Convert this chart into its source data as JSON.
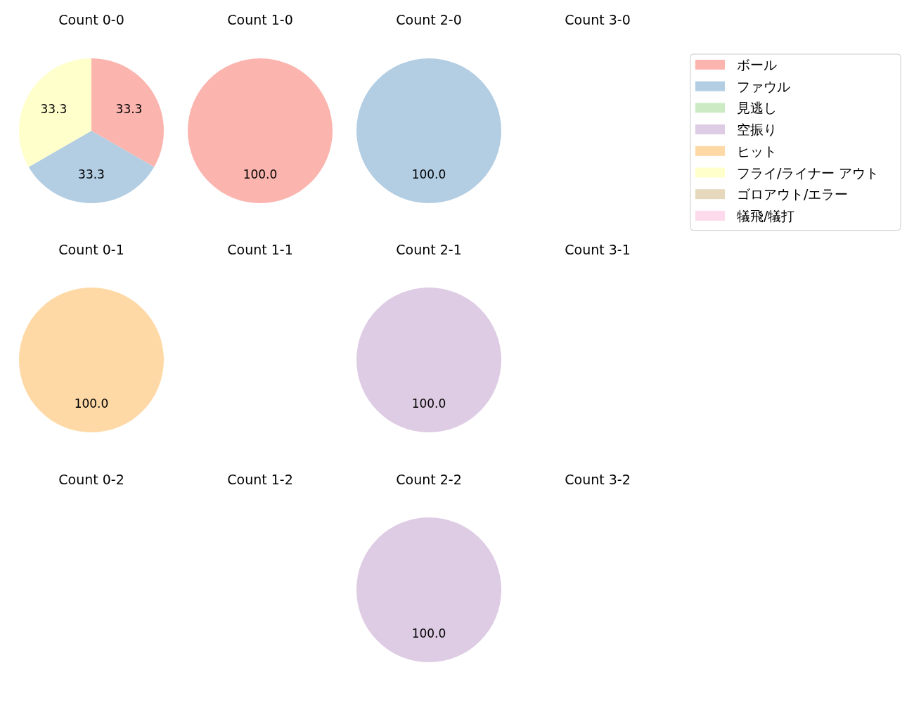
{
  "chart_data": [
    {
      "type": "pie",
      "title": "Count 0-0",
      "legend": "right",
      "categories": [
        "ボール",
        "ファウル",
        "見逃し",
        "空振り",
        "ヒット",
        "フライ/ライナー アウト",
        "ゴロアウト/エラー",
        "犠飛/犠打"
      ],
      "colors": [
        "#fbb4ae",
        "#b3cde3",
        "#ccebc5",
        "#decbe4",
        "#fed9a6",
        "#ffffcc",
        "#e5d8bd",
        "#fddaec"
      ],
      "values": [
        33.3,
        33.3,
        0,
        0,
        0,
        33.3,
        0,
        0
      ],
      "value_labels": [
        "33.3",
        "33.3",
        null,
        null,
        null,
        "33.3",
        null,
        null
      ]
    },
    {
      "type": "pie",
      "title": "Count 1-0",
      "colors": [
        "#fbb4ae"
      ],
      "values": [
        100
      ],
      "value_labels": [
        "100.0"
      ]
    },
    {
      "type": "pie",
      "title": "Count 2-0",
      "colors": [
        "#b3cde3"
      ],
      "values": [
        100
      ],
      "value_labels": [
        "100.0"
      ]
    },
    {
      "type": "pie",
      "title": "Count 3-0"
    },
    {
      "type": "pie",
      "title": "Count 0-1",
      "colors": [
        "#fed9a6"
      ],
      "values": [
        100
      ],
      "value_labels": [
        "100.0"
      ]
    },
    {
      "type": "pie",
      "title": "Count 1-1"
    },
    {
      "type": "pie",
      "title": "Count 2-1",
      "colors": [
        "#decbe4"
      ],
      "values": [
        100
      ],
      "value_labels": [
        "100.0"
      ]
    },
    {
      "type": "pie",
      "title": "Count 3-1"
    },
    {
      "type": "pie",
      "title": "Count 0-2"
    },
    {
      "type": "pie",
      "title": "Count 1-2"
    },
    {
      "type": "pie",
      "title": "Count 2-2",
      "colors": [
        "#decbe4"
      ],
      "values": [
        100
      ],
      "value_labels": [
        "100.0"
      ]
    },
    {
      "type": "pie",
      "title": "Count 3-2"
    }
  ]
}
